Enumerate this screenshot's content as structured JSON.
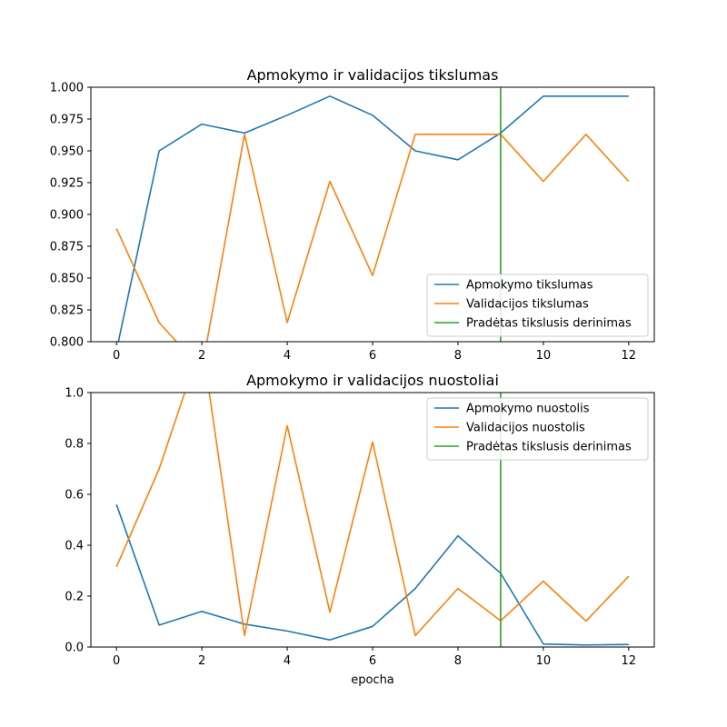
{
  "chart_data": [
    {
      "type": "line",
      "title": "Apmokymo ir validacijos tikslumas",
      "xlabel": "",
      "ylabel": "",
      "xlim": [
        -0.6,
        12.6
      ],
      "ylim": [
        0.8,
        1.0
      ],
      "xticks": [
        "0",
        "2",
        "4",
        "6",
        "8",
        "10",
        "12"
      ],
      "yticks": [
        "0.800",
        "0.825",
        "0.850",
        "0.875",
        "0.900",
        "0.925",
        "0.950",
        "0.975",
        "1.000"
      ],
      "grid": false,
      "legend_position": "lower-right",
      "x": [
        0,
        1,
        2,
        3,
        4,
        5,
        6,
        7,
        8,
        9,
        10,
        11,
        12
      ],
      "series": [
        {
          "name": "Apmokymo tikslumas",
          "color": "#1f77b4",
          "values": [
            0.793,
            0.95,
            0.971,
            0.964,
            0.978,
            0.993,
            0.978,
            0.95,
            0.943,
            0.964,
            0.993,
            0.993,
            0.993
          ]
        },
        {
          "name": "Validacijos tikslumas",
          "color": "#ff7f0e",
          "values": [
            0.889,
            0.815,
            0.778,
            0.963,
            0.815,
            0.926,
            0.852,
            0.963,
            0.963,
            0.963,
            0.926,
            0.963,
            0.926
          ]
        }
      ],
      "vline": {
        "name": "Pradėtas tikslusis derinimas",
        "x": 9,
        "color": "#2ca02c"
      }
    },
    {
      "type": "line",
      "title": "Apmokymo ir validacijos nuostoliai",
      "xlabel": "epocha",
      "ylabel": "",
      "xlim": [
        -0.6,
        12.6
      ],
      "ylim": [
        0.0,
        1.0
      ],
      "xticks": [
        "0",
        "2",
        "4",
        "6",
        "8",
        "10",
        "12"
      ],
      "yticks": [
        "0.0",
        "0.2",
        "0.4",
        "0.6",
        "0.8",
        "1.0"
      ],
      "grid": false,
      "legend_position": "upper-right",
      "x": [
        0,
        1,
        2,
        3,
        4,
        5,
        6,
        7,
        8,
        9,
        10,
        11,
        12
      ],
      "series": [
        {
          "name": "Apmokymo nuostolis",
          "color": "#1f77b4",
          "values": [
            0.56,
            0.086,
            0.14,
            0.09,
            0.063,
            0.028,
            0.081,
            0.23,
            0.437,
            0.29,
            0.012,
            0.008,
            0.01
          ]
        },
        {
          "name": "Validacijos nuostolis",
          "color": "#ff7f0e",
          "values": [
            0.315,
            0.7,
            1.2,
            0.045,
            0.87,
            0.137,
            0.806,
            0.045,
            0.23,
            0.103,
            0.259,
            0.102,
            0.278
          ]
        }
      ],
      "vline": {
        "name": "Pradėtas tikslusis derinimas",
        "x": 9,
        "color": "#2ca02c"
      }
    }
  ]
}
